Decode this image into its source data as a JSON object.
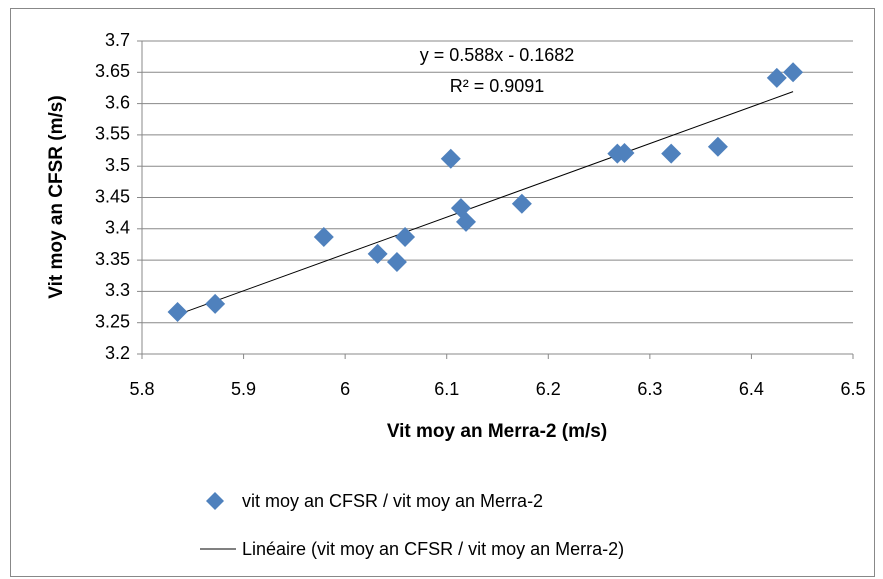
{
  "chart_data": {
    "type": "scatter",
    "xlabel": "Vit moy an Merra-2 (m/s)",
    "ylabel": "Vit moy an CFSR (m/s)",
    "series": [
      {
        "name": "vit moy an CFSR / vit moy an Merra-2",
        "color": "#4f81bd",
        "x": [
          5.835,
          5.872,
          5.979,
          6.032,
          6.051,
          6.059,
          6.104,
          6.114,
          6.119,
          6.174,
          6.268,
          6.275,
          6.321,
          6.367,
          6.425,
          6.441
        ],
        "values": [
          3.267,
          3.28,
          3.387,
          3.36,
          3.347,
          3.387,
          3.512,
          3.433,
          3.411,
          3.44,
          3.52,
          3.521,
          3.52,
          3.531,
          3.641,
          3.65
        ]
      }
    ],
    "trendline": {
      "name": "Linéaire (vit moy an CFSR / vit moy an Merra-2)",
      "slope": 0.588,
      "intercept": -0.1682,
      "equation": "y = 0.588x - 0.1682",
      "r2_label": "R² = 0.9091",
      "color": "#000000"
    },
    "xlim": [
      5.8,
      6.5
    ],
    "xticks": [
      5.8,
      5.9,
      6,
      6.1,
      6.2,
      6.3,
      6.4,
      6.5
    ],
    "ylim": [
      3.2,
      3.7
    ],
    "yticks": [
      3.2,
      3.25,
      3.3,
      3.35,
      3.4,
      3.45,
      3.5,
      3.55,
      3.6,
      3.65,
      3.7
    ],
    "grid": true,
    "legend": "bottom"
  }
}
